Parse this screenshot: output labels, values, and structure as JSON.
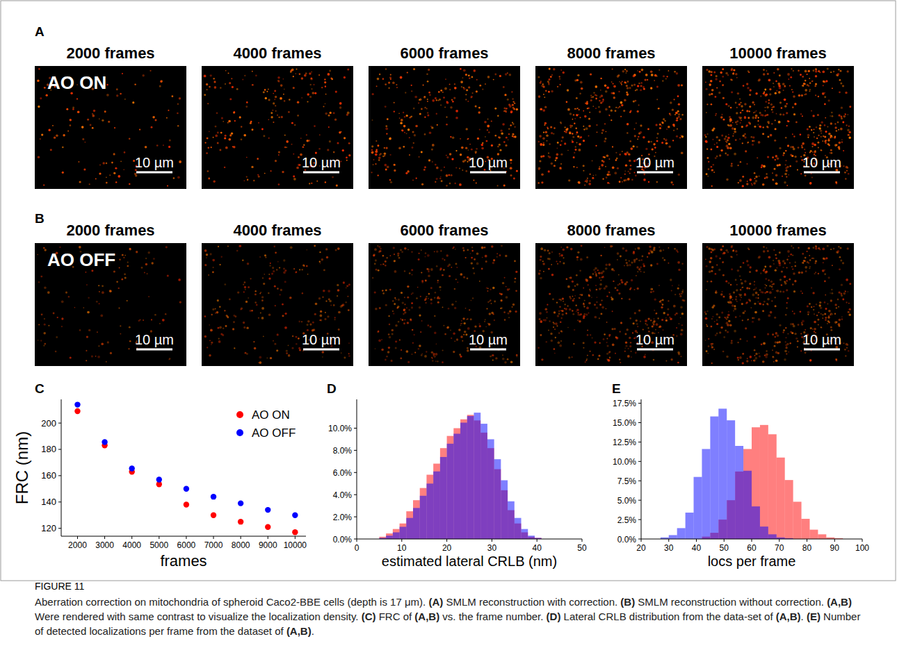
{
  "image_panels": [
    {
      "letter": "A",
      "label": "AO ON",
      "titles": [
        "2000 frames",
        "4000 frames",
        "6000 frames",
        "8000 frames",
        "10000 frames"
      ],
      "scale_bar": "10 µm"
    },
    {
      "letter": "B",
      "label": "AO OFF",
      "titles": [
        "2000 frames",
        "4000 frames",
        "6000 frames",
        "8000 frames",
        "10000 frames"
      ],
      "scale_bar": "10 µm"
    }
  ],
  "chart_data": [
    {
      "letter": "C",
      "type": "scatter",
      "x_label": "frames",
      "y_label": "FRC (nm)",
      "x": [
        2000,
        3000,
        4000,
        5000,
        6000,
        7000,
        8000,
        9000,
        10000
      ],
      "series": [
        {
          "name": "AO ON",
          "color": "red",
          "values": [
            209,
            183,
            163,
            153.5,
            138,
            130,
            125,
            121,
            117
          ]
        },
        {
          "name": "AO OFF",
          "color": "blue",
          "values": [
            214,
            185.5,
            165.5,
            157,
            150,
            144,
            139,
            134,
            130
          ]
        }
      ],
      "xlim": [
        1400,
        10400
      ],
      "ylim": [
        114,
        218
      ],
      "xticks": [
        2000,
        3000,
        4000,
        5000,
        6000,
        7000,
        8000,
        9000,
        10000
      ],
      "yticks": [
        120,
        140,
        160,
        180,
        200
      ],
      "legend": "upper-right"
    },
    {
      "letter": "D",
      "type": "histogram",
      "x_label": "estimated lateral CRLB (nm)",
      "bins": [
        5,
        6.5,
        8,
        9.5,
        11,
        12.5,
        14,
        15.5,
        17,
        18.5,
        20,
        21.5,
        23,
        24.5,
        26,
        27.5,
        29,
        30.5,
        32,
        33.5,
        35,
        36.5,
        38,
        39.5,
        41
      ],
      "series": [
        {
          "color": "red",
          "values": [
            0.2,
            0.5,
            0.9,
            1.4,
            2.5,
            3.5,
            4.6,
            5.8,
            6.8,
            8.2,
            9.3,
            10.0,
            10.8,
            11.2,
            10.7,
            9.6,
            8.2,
            6.3,
            4.4,
            2.6,
            1.4,
            0.6,
            0.2,
            0.1
          ]
        },
        {
          "color": "blue",
          "values": [
            0.1,
            0.3,
            0.6,
            1.1,
            1.9,
            2.8,
            3.9,
            5.0,
            6.1,
            7.4,
            8.6,
            9.5,
            10.5,
            11.1,
            11.4,
            10.4,
            9.0,
            7.2,
            5.3,
            3.4,
            1.9,
            0.9,
            0.3,
            0.1
          ]
        }
      ],
      "xlim": [
        0,
        50
      ],
      "ylim": [
        0,
        12.6
      ],
      "xticks": [
        0,
        10,
        20,
        30,
        40,
        50
      ],
      "yticks": [
        {
          "value": 0,
          "label": "0.0%"
        },
        {
          "value": 2,
          "label": "2.0%"
        },
        {
          "value": 4,
          "label": "4.0%"
        },
        {
          "value": 6,
          "label": "6.0%"
        },
        {
          "value": 8,
          "label": "8.0%"
        },
        {
          "value": 10,
          "label": "10.0%"
        }
      ]
    },
    {
      "letter": "E",
      "type": "histogram",
      "x_label": "locs per frame",
      "bins": [
        27,
        30,
        33,
        36,
        39,
        42,
        45,
        48,
        51,
        54,
        57,
        60,
        63,
        66,
        69,
        72,
        75,
        78,
        81,
        84,
        87,
        90,
        93,
        96,
        99
      ],
      "series": [
        {
          "color": "red",
          "values": [
            0,
            0,
            0,
            0,
            0,
            0.3,
            0.8,
            2.5,
            5.0,
            8.7,
            11.6,
            14.4,
            14.7,
            13.5,
            10.5,
            7.6,
            4.8,
            2.6,
            1.2,
            0.6,
            0.2,
            0.1,
            0,
            0
          ]
        },
        {
          "color": "blue",
          "values": [
            0.2,
            0.5,
            1.4,
            3.4,
            8.0,
            11.6,
            15.8,
            16.8,
            15.3,
            12.0,
            8.8,
            4.2,
            1.6,
            0.6,
            0.2,
            0.1,
            0,
            0,
            0,
            0,
            0,
            0,
            0,
            0
          ]
        }
      ],
      "xlim": [
        20,
        100
      ],
      "ylim": [
        0,
        18
      ],
      "xticks": [
        20,
        30,
        40,
        50,
        60,
        70,
        80,
        90,
        100
      ],
      "yticks": [
        {
          "value": 0,
          "label": "0.0%"
        },
        {
          "value": 2.5,
          "label": "2.5%"
        },
        {
          "value": 5,
          "label": "5.0%"
        },
        {
          "value": 7.5,
          "label": "7.5%"
        },
        {
          "value": 10,
          "label": "10.0%"
        },
        {
          "value": 12.5,
          "label": "12.5%"
        },
        {
          "value": 15,
          "label": "15.0%"
        },
        {
          "value": 17.5,
          "label": "17.5%"
        }
      ]
    }
  ],
  "caption": {
    "label": "FIGURE 11",
    "text": "Aberration correction on mitochondria of spheroid Caco2-BBE cells (depth is 17 μm). (A) SMLM reconstruction with correction. (B) SMLM reconstruction without correction. (A,B) Were rendered with same contrast to visualize the localization density. (C) FRC of (A,B) vs. the frame number. (D) Lateral CRLB distribution from the data-set of (A,B). (E) Number of detected localizations per frame from the dataset of (A,B)."
  }
}
